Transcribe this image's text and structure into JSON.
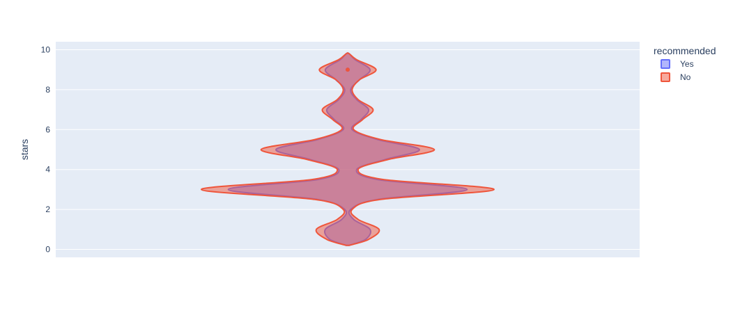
{
  "chart_data": {
    "type": "violin",
    "ylabel": "stars",
    "ylim": [
      -0.4,
      10.4
    ],
    "yticks": [
      0,
      2,
      4,
      6,
      8,
      10
    ],
    "grid": true,
    "overlay": true,
    "legend": {
      "title": "recommended",
      "placement": "top-right"
    },
    "density_y": [
      0.2,
      0.5,
      1,
      1.5,
      2,
      2.5,
      3,
      3.5,
      4,
      4.5,
      5,
      5.5,
      6,
      6.5,
      7,
      7.5,
      8,
      8.5,
      9,
      9.5,
      9.8
    ],
    "series": [
      {
        "name": "Yes",
        "color": "#636efa",
        "fill": "rgba(99,110,250,0.5)",
        "density": [
          0.01,
          0.12,
          0.15,
          0.04,
          0.02,
          0.2,
          0.8,
          0.2,
          0.06,
          0.25,
          0.48,
          0.2,
          0.03,
          0.09,
          0.14,
          0.06,
          0.02,
          0.08,
          0.15,
          0.05,
          0.01
        ],
        "outlier_y": [
          9.0
        ]
      },
      {
        "name": "No",
        "color": "#ef553b",
        "fill": "rgba(239,85,59,0.5)",
        "density": [
          0.01,
          0.14,
          0.21,
          0.07,
          0.03,
          0.22,
          0.98,
          0.24,
          0.07,
          0.27,
          0.58,
          0.22,
          0.04,
          0.1,
          0.17,
          0.07,
          0.03,
          0.08,
          0.19,
          0.06,
          0.01
        ],
        "outlier_y": [
          9.0
        ]
      }
    ]
  }
}
